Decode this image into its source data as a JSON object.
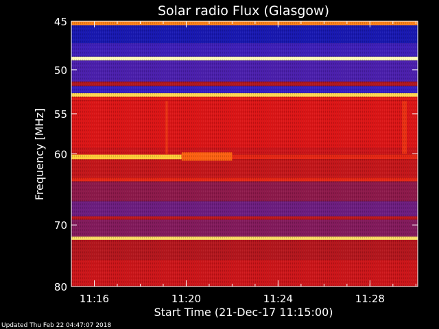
{
  "chart_data": {
    "type": "heatmap",
    "title": "Solar radio Flux (Glasgow)",
    "ylabel": "Frequency [MHz]",
    "xlabel": "Start Time (21-Dec-17 11:15:00)",
    "footer": "Updated Thu Feb 22 04:47:07 2018",
    "y_scale": "log",
    "y_range": [
      45,
      80
    ],
    "y_ticks": [
      {
        "value": 45,
        "label": "45"
      },
      {
        "value": 50,
        "label": "50"
      },
      {
        "value": 55,
        "label": "55"
      },
      {
        "value": 60,
        "label": "60"
      },
      {
        "value": 70,
        "label": "70"
      },
      {
        "value": 80,
        "label": "80"
      }
    ],
    "x_range_minutes": [
      0.0,
      15.08
    ],
    "x_ticks": [
      {
        "value": 1,
        "label": "11:16"
      },
      {
        "value": 5,
        "label": "11:20"
      },
      {
        "value": 9,
        "label": "11:24"
      },
      {
        "value": 13,
        "label": "11:28"
      }
    ],
    "x_minor_ticks": [
      1,
      2,
      3,
      4,
      5,
      6,
      7,
      8,
      9,
      10,
      11,
      12,
      13,
      14,
      15
    ],
    "colormap": [
      "#0a0a55",
      "#1e1ed8",
      "#5a1f9e",
      "#a8161f",
      "#e01515",
      "#ff6a10",
      "#ffd23a",
      "#ffffd0"
    ],
    "bands": [
      {
        "from": 45,
        "to": 45.4,
        "level": 0.75
      },
      {
        "from": 45.4,
        "to": 47.2,
        "level": 0.1
      },
      {
        "from": 47.2,
        "to": 48.6,
        "level": 0.22
      },
      {
        "from": 48.6,
        "to": 49.0,
        "level": 0.98
      },
      {
        "from": 49.0,
        "to": 51.3,
        "level": 0.25
      },
      {
        "from": 51.3,
        "to": 51.8,
        "level": 0.45
      },
      {
        "from": 51.8,
        "to": 52.6,
        "level": 0.2
      },
      {
        "from": 52.6,
        "to": 53.0,
        "level": 0.88
      },
      {
        "from": 53.0,
        "to": 53.4,
        "level": 0.58
      },
      {
        "from": 53.4,
        "to": 59.2,
        "level": 0.56
      },
      {
        "from": 59.2,
        "to": 60.1,
        "level": 0.52
      },
      {
        "from": 60.1,
        "to": 60.7,
        "level": 0.6
      },
      {
        "from": 60.7,
        "to": 63.2,
        "level": 0.5
      },
      {
        "from": 63.2,
        "to": 63.7,
        "level": 0.6
      },
      {
        "from": 63.7,
        "to": 66.5,
        "level": 0.38
      },
      {
        "from": 66.5,
        "to": 68.7,
        "level": 0.32
      },
      {
        "from": 68.7,
        "to": 69.2,
        "level": 0.48
      },
      {
        "from": 69.2,
        "to": 71.8,
        "level": 0.36
      },
      {
        "from": 71.8,
        "to": 72.3,
        "level": 0.9
      },
      {
        "from": 72.3,
        "to": 75.5,
        "level": 0.46
      },
      {
        "from": 75.5,
        "to": 80,
        "level": 0.52
      }
    ],
    "features": [
      {
        "t_start": 0.0,
        "t_end": 4.8,
        "f_low": 60.1,
        "f_high": 60.7,
        "level": 0.85
      },
      {
        "t_start": 4.8,
        "t_end": 7.0,
        "f_low": 59.8,
        "f_high": 60.9,
        "level": 0.7
      },
      {
        "t_start": 4.1,
        "t_end": 4.2,
        "f_low": 53.5,
        "f_high": 60.0,
        "level": 0.62
      },
      {
        "t_start": 14.4,
        "t_end": 14.6,
        "f_low": 53.5,
        "f_high": 60.0,
        "level": 0.62
      }
    ]
  }
}
